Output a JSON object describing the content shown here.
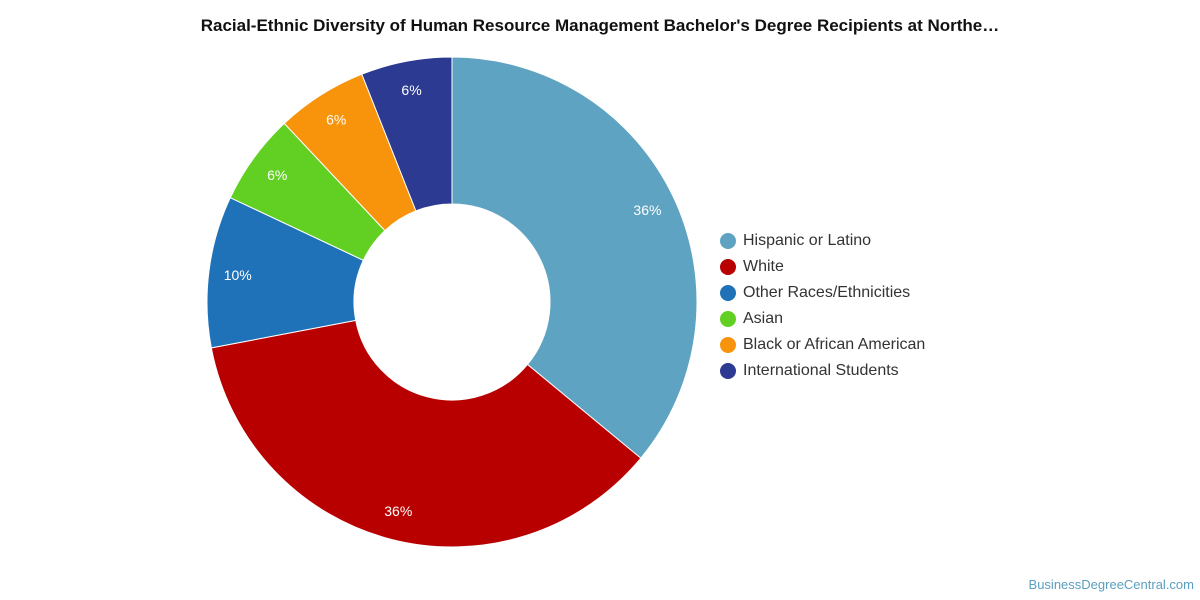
{
  "chart_data": {
    "type": "pie",
    "title": "Racial-Ethnic Diversity of Human Resource Management Bachelor's Degree Recipients at Northe…",
    "donut": true,
    "legend_position": "right",
    "slices": [
      {
        "label": "Hispanic or Latino",
        "value": 36,
        "display": "36%",
        "color": "#5ea3c1"
      },
      {
        "label": "White",
        "value": 36,
        "display": "36%",
        "color": "#b90000"
      },
      {
        "label": "Other Races/Ethnicities",
        "value": 10,
        "display": "10%",
        "color": "#1f72b8"
      },
      {
        "label": "Asian",
        "value": 6,
        "display": "6%",
        "color": "#62cf23"
      },
      {
        "label": "Black or African American",
        "value": 6,
        "display": "6%",
        "color": "#f7940c"
      },
      {
        "label": "International Students",
        "value": 6,
        "display": "6%",
        "color": "#2d3a92"
      }
    ]
  },
  "watermark": "BusinessDegreeCentral.com"
}
